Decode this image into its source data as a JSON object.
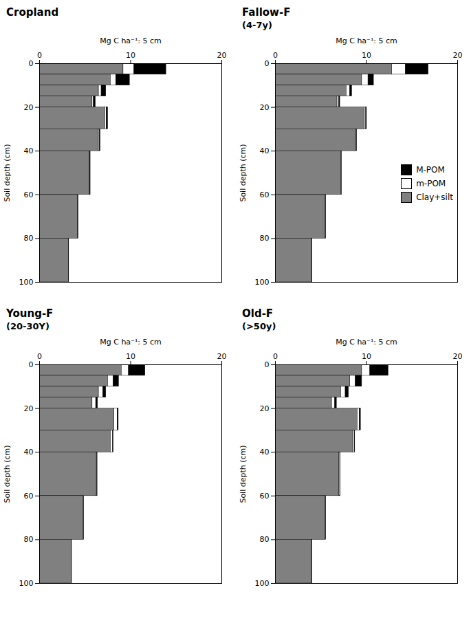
{
  "chart_data": [
    {
      "type": "bar",
      "orientation": "horizontal",
      "stacked": true,
      "grid": false,
      "title": "Cropland",
      "xlabel": "Mg C ha⁻¹: 5 cm",
      "ylabel": "Soil depth (cm)",
      "depth_top": [
        0,
        5,
        10,
        15,
        20,
        30,
        40,
        60,
        80
      ],
      "depth_bottom": [
        5,
        10,
        15,
        20,
        30,
        40,
        60,
        80,
        100
      ],
      "series": [
        {
          "name": "Clay+silt",
          "color": "#808080",
          "values": [
            9.2,
            7.8,
            6.5,
            5.8,
            7.2,
            6.5,
            5.5,
            4.2,
            3.2
          ]
        },
        {
          "name": "m-POM",
          "color": "#ffffff",
          "values": [
            1.2,
            0.6,
            0.3,
            0.15,
            0.15,
            0.1,
            0.05,
            0.03,
            0.02
          ]
        },
        {
          "name": "M-POM",
          "color": "#000000",
          "values": [
            3.5,
            1.5,
            0.5,
            0.2,
            0.15,
            0.08,
            0.04,
            0.02,
            0.01
          ]
        }
      ],
      "xlim": [
        0,
        20
      ],
      "xticks": [
        0,
        10,
        20
      ],
      "ylim": [
        100,
        0
      ],
      "yticks": [
        0,
        20,
        40,
        60,
        80,
        100
      ]
    },
    {
      "type": "bar",
      "orientation": "horizontal",
      "stacked": true,
      "grid": false,
      "title": "Fallow-F",
      "subtitle": "(4-7y)",
      "xlabel": "Mg C ha⁻¹: 5 cm",
      "ylabel": "Soil depth (cm)",
      "depth_top": [
        0,
        5,
        10,
        15,
        20,
        30,
        40,
        60,
        80
      ],
      "depth_bottom": [
        5,
        10,
        15,
        20,
        30,
        40,
        60,
        80,
        100
      ],
      "series": [
        {
          "name": "Clay+silt",
          "color": "#808080",
          "values": [
            12.8,
            9.5,
            7.8,
            6.8,
            9.8,
            8.8,
            7.2,
            5.5,
            4.0
          ]
        },
        {
          "name": "m-POM",
          "color": "#ffffff",
          "values": [
            1.5,
            0.7,
            0.4,
            0.2,
            0.15,
            0.1,
            0.05,
            0.03,
            0.02
          ]
        },
        {
          "name": "M-POM",
          "color": "#000000",
          "values": [
            2.5,
            0.6,
            0.2,
            0.1,
            0.08,
            0.04,
            0.02,
            0.01,
            0.01
          ]
        }
      ],
      "legend": "right",
      "xlim": [
        0,
        20
      ],
      "xticks": [
        0,
        10,
        20
      ],
      "ylim": [
        100,
        0
      ],
      "yticks": [
        0,
        20,
        40,
        60,
        80,
        100
      ]
    },
    {
      "type": "bar",
      "orientation": "horizontal",
      "stacked": true,
      "grid": false,
      "title": "Young-F",
      "subtitle": "(20-30Y)",
      "xlabel": "Mg C ha⁻¹: 5 cm",
      "ylabel": "Soil depth (cm)",
      "depth_top": [
        0,
        5,
        10,
        15,
        20,
        30,
        40,
        60,
        80
      ],
      "depth_bottom": [
        5,
        10,
        15,
        20,
        30,
        40,
        60,
        80,
        100
      ],
      "series": [
        {
          "name": "Clay+silt",
          "color": "#808080",
          "values": [
            9.0,
            7.5,
            6.5,
            5.8,
            8.2,
            7.8,
            6.2,
            4.8,
            3.5
          ]
        },
        {
          "name": "m-POM",
          "color": "#ffffff",
          "values": [
            0.8,
            0.6,
            0.5,
            0.4,
            0.35,
            0.25,
            0.12,
            0.06,
            0.03
          ]
        },
        {
          "name": "M-POM",
          "color": "#000000",
          "values": [
            1.8,
            0.6,
            0.3,
            0.2,
            0.12,
            0.06,
            0.03,
            0.01,
            0.01
          ]
        }
      ],
      "xlim": [
        0,
        20
      ],
      "xticks": [
        0,
        10,
        20
      ],
      "ylim": [
        100,
        0
      ],
      "yticks": [
        0,
        20,
        40,
        60,
        80,
        100
      ]
    },
    {
      "type": "bar",
      "orientation": "horizontal",
      "stacked": true,
      "grid": false,
      "title": "Old-F",
      "subtitle": "(>50y)",
      "xlabel": "Mg C ha⁻¹: 5 cm",
      "ylabel": "Soil depth (cm)",
      "depth_top": [
        0,
        5,
        10,
        15,
        20,
        30,
        40,
        60,
        80
      ],
      "depth_bottom": [
        5,
        10,
        15,
        20,
        30,
        40,
        60,
        80,
        100
      ],
      "series": [
        {
          "name": "Clay+silt",
          "color": "#808080",
          "values": [
            9.5,
            8.2,
            7.2,
            6.2,
            9.0,
            8.5,
            7.0,
            5.5,
            4.0
          ]
        },
        {
          "name": "m-POM",
          "color": "#ffffff",
          "values": [
            0.9,
            0.6,
            0.5,
            0.35,
            0.25,
            0.18,
            0.1,
            0.05,
            0.03
          ]
        },
        {
          "name": "M-POM",
          "color": "#000000",
          "values": [
            2.0,
            0.7,
            0.35,
            0.18,
            0.12,
            0.06,
            0.03,
            0.01,
            0.01
          ]
        }
      ],
      "xlim": [
        0,
        20
      ],
      "xticks": [
        0,
        10,
        20
      ],
      "ylim": [
        100,
        0
      ],
      "yticks": [
        0,
        20,
        40,
        60,
        80,
        100
      ]
    }
  ]
}
